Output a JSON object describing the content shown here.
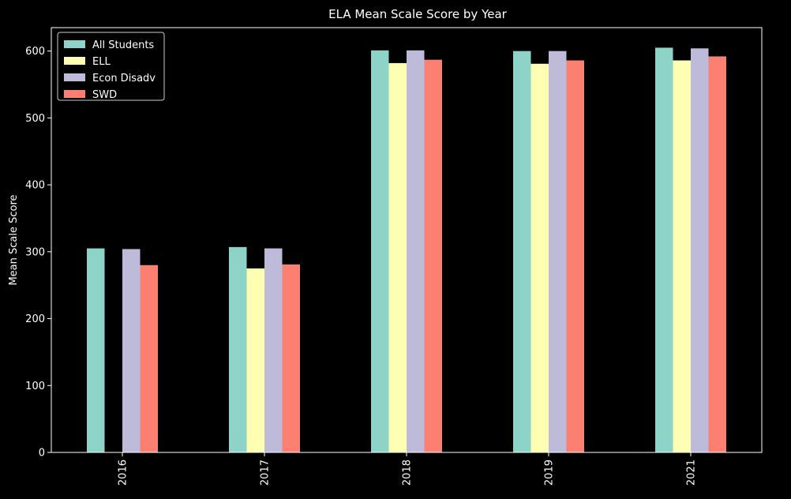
{
  "chart_data": {
    "type": "bar",
    "title": "ELA Mean Scale Score by Year",
    "xlabel": "",
    "ylabel": "Mean Scale Score",
    "categories": [
      "2016",
      "2017",
      "2018",
      "2019",
      "2021"
    ],
    "series": [
      {
        "name": "All Students",
        "color": "#8dd3c7",
        "values": [
          305,
          307,
          601,
          600,
          605
        ]
      },
      {
        "name": "ELL",
        "color": "#ffffb3",
        "values": [
          null,
          275,
          582,
          581,
          586
        ]
      },
      {
        "name": "Econ Disadv",
        "color": "#bebada",
        "values": [
          304,
          305,
          601,
          600,
          604
        ]
      },
      {
        "name": "SWD",
        "color": "#fb8072",
        "values": [
          280,
          281,
          587,
          586,
          592
        ]
      }
    ],
    "ylim": [
      0,
      635
    ],
    "yticks": [
      0,
      100,
      200,
      300,
      400,
      500,
      600
    ],
    "legend": "top-left",
    "grid": false,
    "background": "#000000",
    "foreground": "#ffffff"
  }
}
